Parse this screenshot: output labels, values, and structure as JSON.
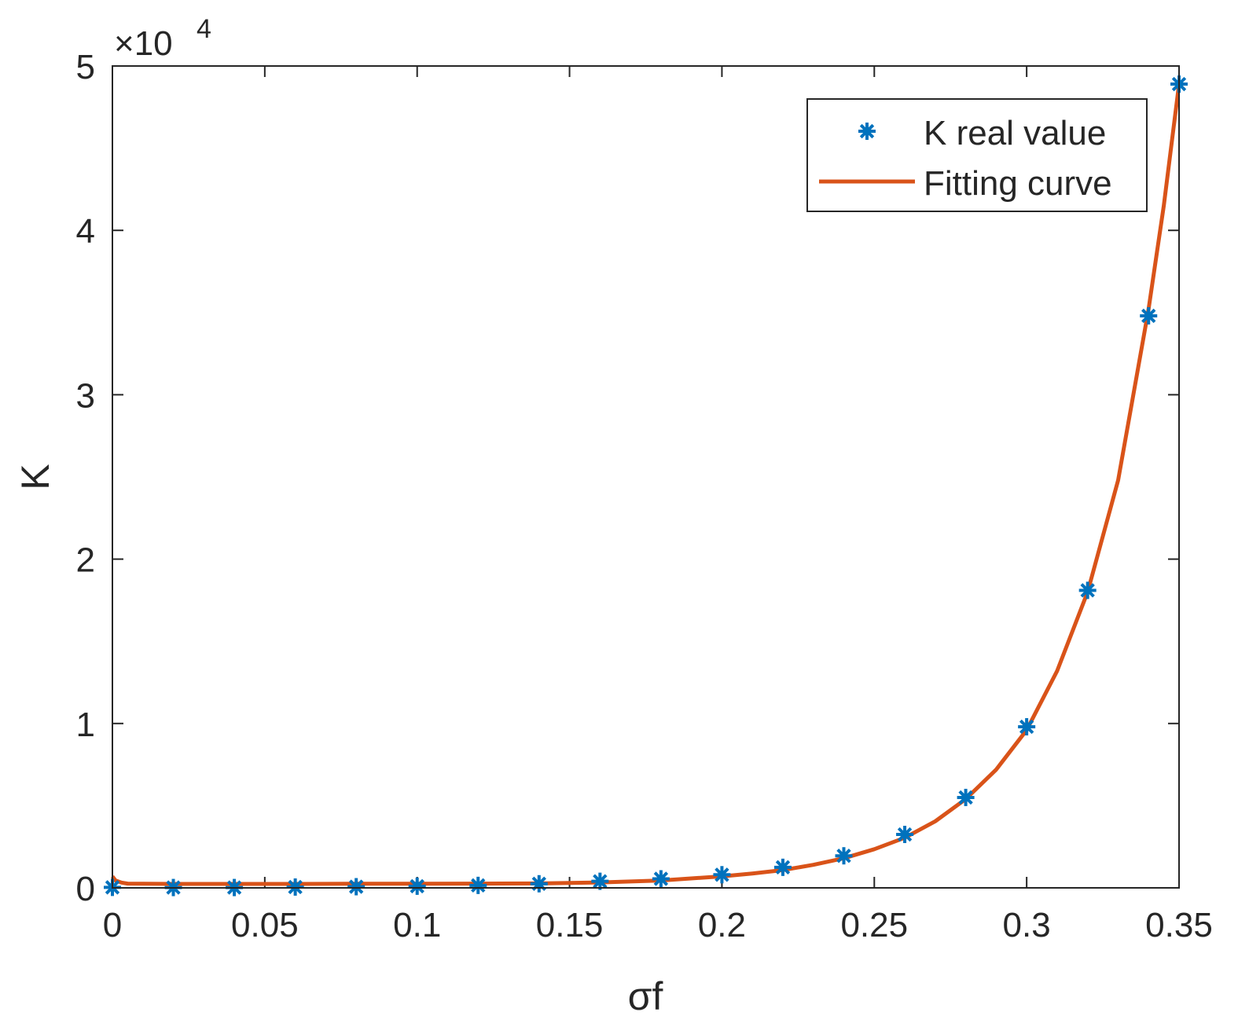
{
  "chart_data": {
    "type": "scatter",
    "title": "",
    "xlabel": "σf",
    "ylabel": "K",
    "xlim": [
      0,
      0.35
    ],
    "ylim": [
      0,
      50000
    ],
    "y_multiplier_label": {
      "base": "×10",
      "exponent": "4"
    },
    "x_ticks": [
      0,
      0.05,
      0.1,
      0.15,
      0.2,
      0.25,
      0.3,
      0.35
    ],
    "x_tick_labels": [
      "0",
      "0.05",
      "0.1",
      "0.15",
      "0.2",
      "0.25",
      "0.3",
      "0.35"
    ],
    "y_ticks": [
      0,
      10000,
      20000,
      30000,
      40000,
      50000
    ],
    "y_tick_labels": [
      "0",
      "1",
      "2",
      "3",
      "4",
      "5"
    ],
    "grid": false,
    "legend_position": "top-right",
    "series": [
      {
        "name": "K real value",
        "kind": "marker",
        "marker": "asterisk",
        "color": "#0072BD",
        "x": [
          0,
          0.02,
          0.04,
          0.06,
          0.08,
          0.1,
          0.12,
          0.14,
          0.16,
          0.18,
          0.2,
          0.22,
          0.24,
          0.26,
          0.28,
          0.3,
          0.32,
          0.34,
          0.35
        ],
        "y": [
          30,
          20,
          20,
          50,
          70,
          100,
          150,
          250,
          400,
          550,
          800,
          1250,
          1950,
          3250,
          5500,
          9800,
          18100,
          34800,
          48900
        ]
      },
      {
        "name": "Fitting curve",
        "kind": "line",
        "color": "#D95319",
        "x": [
          0,
          0.001,
          0.003,
          0.005,
          0.01,
          0.02,
          0.04,
          0.06,
          0.08,
          0.1,
          0.12,
          0.14,
          0.16,
          0.18,
          0.2,
          0.21,
          0.22,
          0.23,
          0.24,
          0.25,
          0.26,
          0.27,
          0.28,
          0.29,
          0.3,
          0.31,
          0.32,
          0.33,
          0.34,
          0.345,
          0.35
        ],
        "y": [
          700,
          450,
          320,
          260,
          250,
          240,
          240,
          240,
          250,
          250,
          260,
          270,
          330,
          450,
          700,
          870,
          1080,
          1400,
          1800,
          2350,
          3050,
          4050,
          5400,
          7200,
          9600,
          13200,
          18000,
          24800,
          35200,
          41500,
          48900
        ]
      }
    ]
  }
}
